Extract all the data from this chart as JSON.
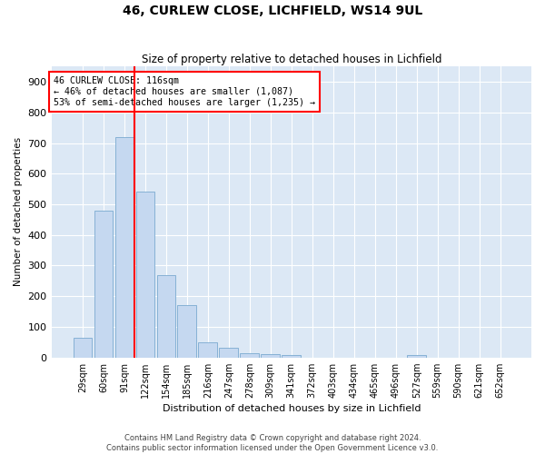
{
  "title": "46, CURLEW CLOSE, LICHFIELD, WS14 9UL",
  "subtitle": "Size of property relative to detached houses in Lichfield",
  "xlabel": "Distribution of detached houses by size in Lichfield",
  "ylabel": "Number of detached properties",
  "categories": [
    "29sqm",
    "60sqm",
    "91sqm",
    "122sqm",
    "154sqm",
    "185sqm",
    "216sqm",
    "247sqm",
    "278sqm",
    "309sqm",
    "341sqm",
    "372sqm",
    "403sqm",
    "434sqm",
    "465sqm",
    "496sqm",
    "527sqm",
    "559sqm",
    "590sqm",
    "621sqm",
    "652sqm"
  ],
  "values": [
    63,
    480,
    720,
    540,
    270,
    172,
    48,
    33,
    15,
    12,
    8,
    0,
    0,
    0,
    0,
    0,
    8,
    0,
    0,
    0,
    0
  ],
  "bar_color": "#c5d8f0",
  "bar_edge_color": "#7aaad0",
  "vline_x_index": 2,
  "vline_color": "red",
  "annotation_title": "46 CURLEW CLOSE: 116sqm",
  "annotation_line1": "← 46% of detached houses are smaller (1,087)",
  "annotation_line2": "53% of semi-detached houses are larger (1,235) →",
  "annotation_box_color": "white",
  "annotation_box_edge_color": "red",
  "ylim": [
    0,
    950
  ],
  "yticks": [
    0,
    100,
    200,
    300,
    400,
    500,
    600,
    700,
    800,
    900
  ],
  "footer_line1": "Contains HM Land Registry data © Crown copyright and database right 2024.",
  "footer_line2": "Contains public sector information licensed under the Open Government Licence v3.0.",
  "bg_color": "#dce8f5",
  "plot_bg_color": "#dce8f5"
}
